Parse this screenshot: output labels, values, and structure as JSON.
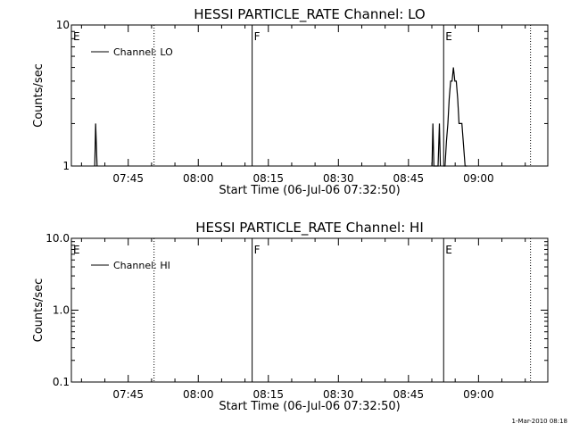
{
  "timestamp": "1-Mar-2010 08:18",
  "chart_data": [
    {
      "type": "line",
      "title": "HESSI PARTICLE_RATE Channel: LO",
      "xlabel": "Start Time (06-Jul-06 07:32:50)",
      "ylabel": "Counts/sec",
      "xlim_minutes_after_start": [
        0,
        102
      ],
      "ylim": [
        1,
        10
      ],
      "yscale": "log",
      "xticks": [
        {
          "label": "07:45",
          "minutes_after_start": 12.17
        },
        {
          "label": "08:00",
          "minutes_after_start": 27.17
        },
        {
          "label": "08:15",
          "minutes_after_start": 42.17
        },
        {
          "label": "08:30",
          "minutes_after_start": 57.17
        },
        {
          "label": "08:45",
          "minutes_after_start": 72.17
        },
        {
          "label": "09:00",
          "minutes_after_start": 87.17
        }
      ],
      "yticks": [
        {
          "label": "1",
          "value": 1
        },
        {
          "label": "10",
          "value": 10
        }
      ],
      "event_markers": [
        {
          "label": "E",
          "minutes_after_start": 0,
          "style": "solid"
        },
        {
          "label": "",
          "minutes_after_start": 17.7,
          "style": "dotted"
        },
        {
          "label": "F",
          "minutes_after_start": 38.7,
          "style": "solid"
        },
        {
          "label": "E",
          "minutes_after_start": 79.7,
          "style": "solid"
        },
        {
          "label": "",
          "minutes_after_start": 98.3,
          "style": "dotted"
        }
      ],
      "legend": {
        "position": "top-left",
        "label": "Channel: LO"
      },
      "series": [
        {
          "name": "Channel: LO",
          "segments": [
            {
              "x": [
                5.0,
                5.2,
                5.5
              ],
              "y": [
                1,
                2,
                1
              ]
            },
            {
              "x": [
                77.2,
                77.4,
                77.6,
                78.5,
                78.8,
                79.0
              ],
              "y": [
                1,
                2,
                1,
                1,
                2,
                1
              ]
            },
            {
              "x": [
                79.6,
                80.0,
                80.3,
                80.6,
                80.9,
                81.2,
                81.5,
                81.8,
                82.1,
                82.4,
                82.7,
                83.0,
                83.3,
                83.6,
                83.9,
                84.3,
                84.7
              ],
              "y": [
                1,
                1,
                1.5,
                2,
                3,
                4,
                4,
                5,
                4,
                4,
                3,
                2,
                2,
                2,
                1.5,
                1,
                1
              ]
            }
          ]
        }
      ]
    },
    {
      "type": "line",
      "title": "HESSI PARTICLE_RATE Channel: HI",
      "xlabel": "Start Time (06-Jul-06 07:32:50)",
      "ylabel": "Counts/sec",
      "xlim_minutes_after_start": [
        0,
        102
      ],
      "ylim": [
        0.1,
        10
      ],
      "yscale": "log",
      "xticks": [
        {
          "label": "07:45",
          "minutes_after_start": 12.17
        },
        {
          "label": "08:00",
          "minutes_after_start": 27.17
        },
        {
          "label": "08:15",
          "minutes_after_start": 42.17
        },
        {
          "label": "08:30",
          "minutes_after_start": 57.17
        },
        {
          "label": "08:45",
          "minutes_after_start": 72.17
        },
        {
          "label": "09:00",
          "minutes_after_start": 87.17
        }
      ],
      "yticks": [
        {
          "label": "0.1",
          "value": 0.1
        },
        {
          "label": "1.0",
          "value": 1
        },
        {
          "label": "10.0",
          "value": 10
        }
      ],
      "event_markers": [
        {
          "label": "E",
          "minutes_after_start": 0,
          "style": "solid"
        },
        {
          "label": "",
          "minutes_after_start": 17.7,
          "style": "dotted"
        },
        {
          "label": "F",
          "minutes_after_start": 38.7,
          "style": "solid"
        },
        {
          "label": "E",
          "minutes_after_start": 79.7,
          "style": "solid"
        },
        {
          "label": "",
          "minutes_after_start": 98.3,
          "style": "dotted"
        }
      ],
      "legend": {
        "position": "top-left",
        "label": "Channel: HI"
      },
      "series": [
        {
          "name": "Channel: HI",
          "segments": []
        }
      ]
    }
  ]
}
